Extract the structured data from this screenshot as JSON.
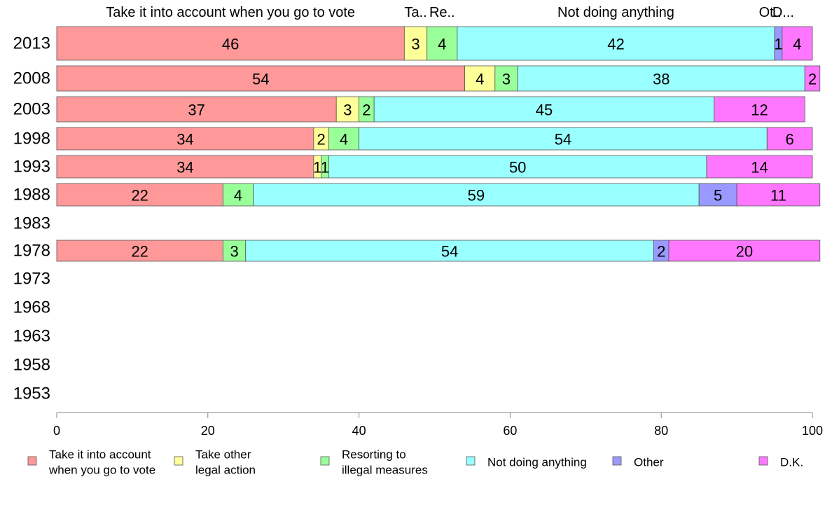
{
  "chart_data": {
    "type": "bar",
    "orientation": "horizontal",
    "stacked": true,
    "title": "",
    "xlabel": "",
    "ylabel": "",
    "xlim": [
      0,
      100
    ],
    "xticks": [
      0,
      20,
      40,
      60,
      80,
      100
    ],
    "grid": false,
    "legend_position": "bottom",
    "categories": [
      "2013",
      "2008",
      "2003",
      "1998",
      "1993",
      "1988",
      "1983",
      "1978",
      "1973",
      "1968",
      "1963",
      "1958",
      "1953"
    ],
    "series": [
      {
        "name": "Take it into account when you go to vote",
        "legend_label": [
          "Take it into account",
          "when you go to vote"
        ],
        "header_label": "Take it into account when you go to vote",
        "color": "#ff9999",
        "values": [
          46,
          54,
          37,
          34,
          34,
          22,
          null,
          22,
          null,
          null,
          null,
          null,
          null
        ]
      },
      {
        "name": "Take other legal action",
        "legend_label": [
          "Take other",
          "legal action"
        ],
        "header_label": "Ta..",
        "color": "#ffff99",
        "values": [
          3,
          4,
          3,
          2,
          1,
          0,
          null,
          0,
          null,
          null,
          null,
          null,
          null
        ]
      },
      {
        "name": "Resorting to illegal measures",
        "legend_label": [
          "Resorting to",
          "illegal measures"
        ],
        "header_label": "Re..",
        "color": "#99ff99",
        "values": [
          4,
          3,
          2,
          4,
          1,
          4,
          null,
          3,
          null,
          null,
          null,
          null,
          null
        ]
      },
      {
        "name": "Not doing anything",
        "legend_label": [
          "Not doing anything"
        ],
        "header_label": "Not doing anything",
        "color": "#99ffff",
        "values": [
          42,
          38,
          45,
          54,
          50,
          59,
          null,
          54,
          null,
          null,
          null,
          null,
          null
        ]
      },
      {
        "name": "Other",
        "legend_label": [
          "Other"
        ],
        "header_label": "Ot..",
        "color": "#9999ff",
        "values": [
          1,
          0,
          0,
          0,
          0,
          5,
          null,
          2,
          null,
          null,
          null,
          null,
          null
        ]
      },
      {
        "name": "D.K.",
        "legend_label": [
          "D.K."
        ],
        "header_label": "D...",
        "color": "#ff77ff",
        "values": [
          4,
          2,
          12,
          6,
          14,
          11,
          null,
          20,
          null,
          null,
          null,
          null,
          null
        ]
      }
    ],
    "bar_value_labels": [
      [
        "46",
        "3",
        "4",
        "42",
        "1",
        "4"
      ],
      [
        "54",
        "4",
        "3",
        "38",
        "",
        "2"
      ],
      [
        "37",
        "3",
        "2",
        "45",
        "",
        "12"
      ],
      [
        "34",
        "2",
        "4",
        "54",
        "",
        "6"
      ],
      [
        "34",
        "1",
        "1",
        "50",
        "",
        "14"
      ],
      [
        "22",
        "",
        "4",
        "59",
        "5",
        "11"
      ],
      [
        "",
        "",
        "",
        "",
        "",
        ""
      ],
      [
        "22",
        "",
        "3",
        "54",
        "2",
        "20"
      ],
      [
        "",
        "",
        "",
        "",
        "",
        ""
      ],
      [
        "",
        "",
        "",
        "",
        "",
        ""
      ],
      [
        "",
        "",
        "",
        "",
        "",
        ""
      ],
      [
        "",
        "",
        "",
        "",
        "",
        ""
      ],
      [
        "",
        "",
        "",
        "",
        "",
        ""
      ]
    ]
  }
}
